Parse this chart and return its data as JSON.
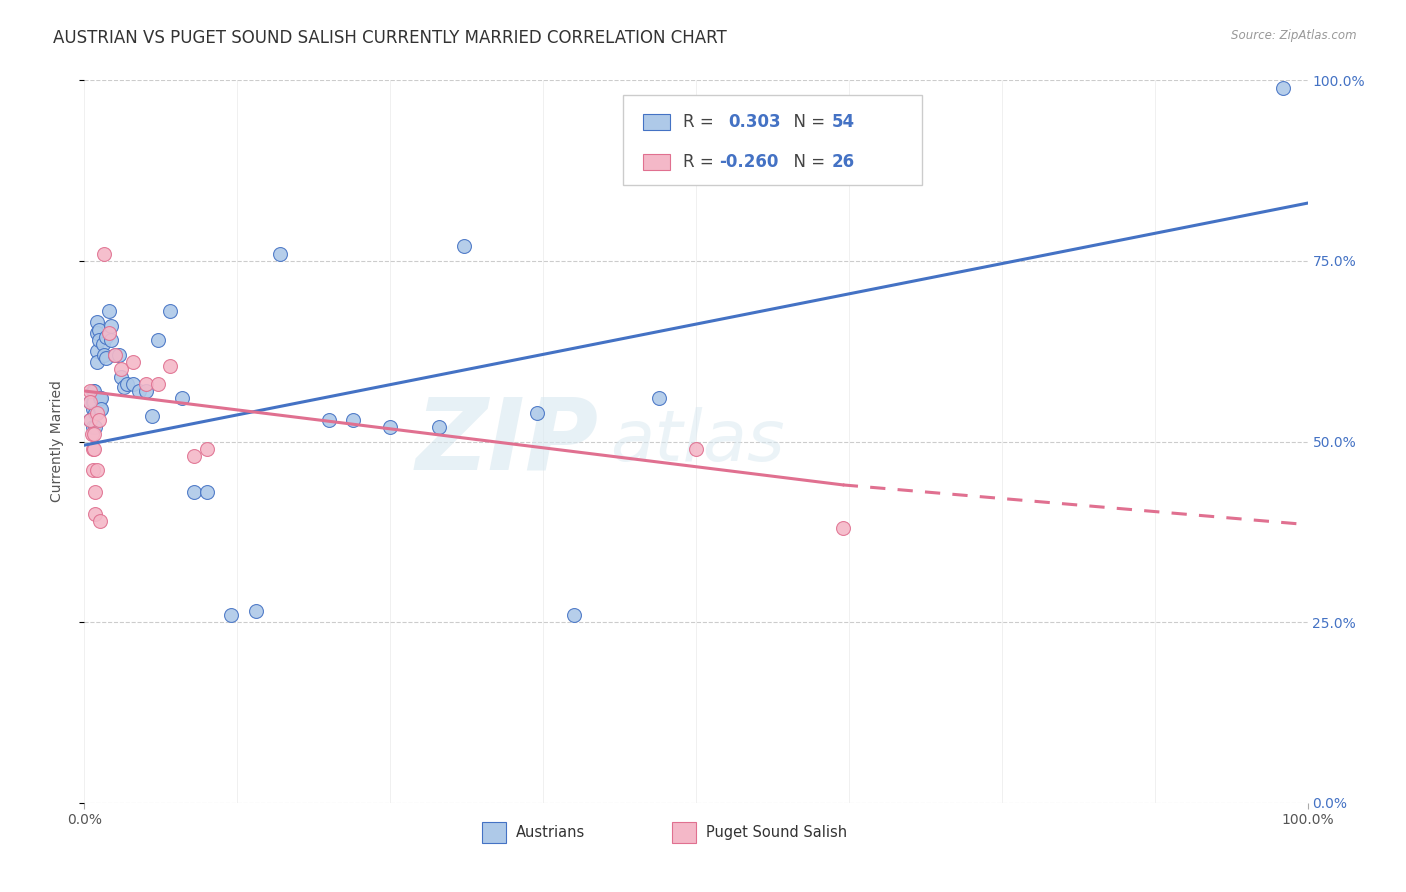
{
  "title": "AUSTRIAN VS PUGET SOUND SALISH CURRENTLY MARRIED CORRELATION CHART",
  "source": "Source: ZipAtlas.com",
  "ylabel": "Currently Married",
  "xlim": [
    0,
    1
  ],
  "ylim": [
    0,
    1
  ],
  "ytick_labels": [
    "0.0%",
    "25.0%",
    "50.0%",
    "75.0%",
    "100.0%"
  ],
  "ytick_values": [
    0,
    0.25,
    0.5,
    0.75,
    1.0
  ],
  "xtick_labels": [
    "0.0%",
    "100.0%"
  ],
  "xtick_values": [
    0.0,
    1.0
  ],
  "watermark_zip": "ZIP",
  "watermark_atlas": "atlas",
  "blue_fill": "#aec9e8",
  "blue_edge": "#4472c4",
  "pink_fill": "#f4b8c8",
  "pink_edge": "#e07090",
  "blue_line": "#4472c4",
  "pink_line": "#e07090",
  "grid_color": "#cccccc",
  "right_tick_color": "#4472c4",
  "bg_color": "#ffffff",
  "austrians_x": [
    0.005,
    0.005,
    0.007,
    0.007,
    0.007,
    0.007,
    0.008,
    0.008,
    0.009,
    0.009,
    0.01,
    0.01,
    0.01,
    0.01,
    0.012,
    0.012,
    0.013,
    0.013,
    0.014,
    0.014,
    0.015,
    0.016,
    0.018,
    0.018,
    0.02,
    0.022,
    0.022,
    0.025,
    0.028,
    0.03,
    0.032,
    0.035,
    0.04,
    0.045,
    0.05,
    0.055,
    0.06,
    0.07,
    0.08,
    0.09,
    0.1,
    0.12,
    0.14,
    0.16,
    0.2,
    0.22,
    0.25,
    0.29,
    0.31,
    0.37,
    0.4,
    0.47,
    0.52,
    0.98
  ],
  "austrians_y": [
    0.555,
    0.53,
    0.57,
    0.555,
    0.545,
    0.52,
    0.57,
    0.555,
    0.54,
    0.52,
    0.665,
    0.65,
    0.625,
    0.61,
    0.655,
    0.64,
    0.56,
    0.545,
    0.56,
    0.545,
    0.635,
    0.62,
    0.645,
    0.615,
    0.68,
    0.66,
    0.64,
    0.62,
    0.62,
    0.59,
    0.575,
    0.58,
    0.58,
    0.57,
    0.57,
    0.535,
    0.64,
    0.68,
    0.56,
    0.43,
    0.43,
    0.26,
    0.265,
    0.76,
    0.53,
    0.53,
    0.52,
    0.52,
    0.77,
    0.54,
    0.26,
    0.56,
    0.96,
    0.99
  ],
  "salish_x": [
    0.005,
    0.005,
    0.005,
    0.006,
    0.007,
    0.007,
    0.008,
    0.008,
    0.009,
    0.009,
    0.01,
    0.01,
    0.012,
    0.013,
    0.016,
    0.02,
    0.025,
    0.03,
    0.04,
    0.05,
    0.06,
    0.07,
    0.09,
    0.1,
    0.5,
    0.62
  ],
  "salish_y": [
    0.57,
    0.555,
    0.53,
    0.51,
    0.49,
    0.46,
    0.51,
    0.49,
    0.43,
    0.4,
    0.54,
    0.46,
    0.53,
    0.39,
    0.76,
    0.65,
    0.62,
    0.6,
    0.61,
    0.58,
    0.58,
    0.605,
    0.48,
    0.49,
    0.49,
    0.38
  ],
  "blue_trend": [
    0.0,
    1.0,
    0.495,
    0.83
  ],
  "pink_trend_solid": [
    0.0,
    0.62,
    0.57,
    0.44
  ],
  "pink_trend_dashed": [
    0.62,
    1.0,
    0.44,
    0.385
  ],
  "title_fontsize": 12,
  "tick_fontsize": 10,
  "axis_label_fontsize": 10,
  "scatter_size": 100
}
